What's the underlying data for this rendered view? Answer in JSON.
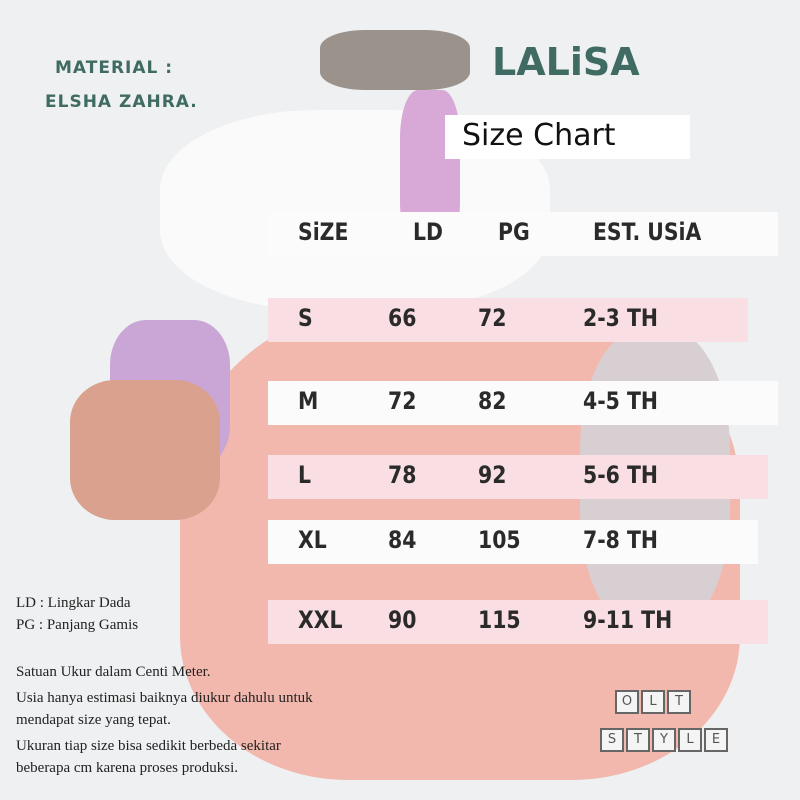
{
  "material": {
    "label": "MATERIAL :",
    "value": "ELSHA ZAHRA."
  },
  "brand": "LALiSA",
  "title": "Size Chart",
  "table": {
    "headers": [
      "SiZE",
      "LD",
      "PG",
      "EST. USiA"
    ],
    "rows": [
      [
        "S",
        "66",
        "72",
        "2-3 TH"
      ],
      [
        "M",
        "72",
        "82",
        "4-5 TH"
      ],
      [
        "L",
        "78",
        "92",
        "5-6 TH"
      ],
      [
        "XL",
        "84",
        "105",
        "7-8 TH"
      ],
      [
        "XXL",
        "90",
        "115",
        "9-11 TH"
      ]
    ]
  },
  "legend": [
    "LD : Lingkar Dada",
    "PG : Panjang Gamis"
  ],
  "notes": [
    "Satuan Ukur dalam Centi Meter.",
    "Usia hanya estimasi baiknya diukur dahulu untuk mendapat size yang tepat.",
    "Ukuran tiap size bisa sedikit berbeda sekitar beberapa cm karena proses produksi."
  ],
  "logo": {
    "line1": [
      "O",
      "L",
      "T"
    ],
    "line2": [
      "S",
      "T",
      "Y",
      "L",
      "E"
    ]
  },
  "colors": {
    "brand": "#3f6b62",
    "band_pink": "#f9dfe3",
    "dress_pink": "#f0b3a8"
  }
}
